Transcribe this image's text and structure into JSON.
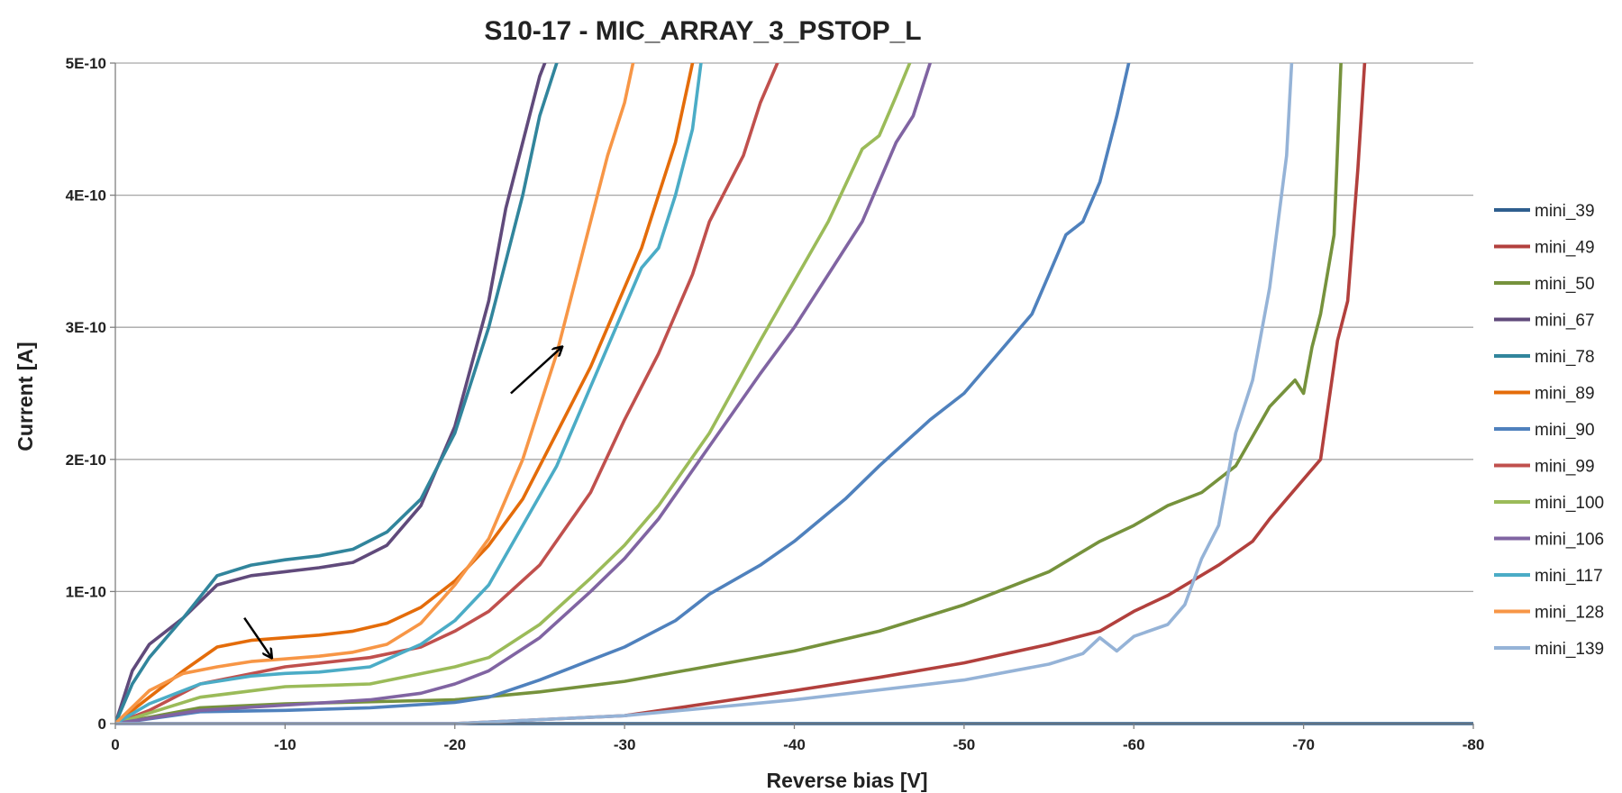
{
  "chart_data": {
    "type": "line",
    "title": "S10-17 - MIC_ARRAY_3_PSTOP_L",
    "xlabel": "Reverse bias [V]",
    "ylabel": "Current [A]",
    "xlim": [
      0,
      -80
    ],
    "ylim": [
      0,
      5e-10
    ],
    "grid": true,
    "legend_position": "right",
    "x_ticks": [
      {
        "value": 0,
        "label": "0"
      },
      {
        "value": -10,
        "label": "-10"
      },
      {
        "value": -20,
        "label": "-20"
      },
      {
        "value": -30,
        "label": "-30"
      },
      {
        "value": -40,
        "label": "-40"
      },
      {
        "value": -50,
        "label": "-50"
      },
      {
        "value": -60,
        "label": "-60"
      },
      {
        "value": -70,
        "label": "-70"
      },
      {
        "value": -80,
        "label": "-80"
      }
    ],
    "y_ticks": [
      {
        "value": 0,
        "label": "0"
      },
      {
        "value": 1e-10,
        "label": "1E-10"
      },
      {
        "value": 2e-10,
        "label": "2E-10"
      },
      {
        "value": 3e-10,
        "label": "3E-10"
      },
      {
        "value": 4e-10,
        "label": "4E-10"
      },
      {
        "value": 5e-10,
        "label": "5E-10"
      }
    ],
    "series": [
      {
        "name": "mini_39",
        "color": "#2e5e8e",
        "x": [
          0,
          -10,
          -20,
          -30,
          -40,
          -50,
          -60,
          -70,
          -80
        ],
        "y": [
          0,
          0,
          0,
          0,
          0,
          0,
          0,
          0,
          0
        ]
      },
      {
        "name": "mini_49",
        "color": "#b2403d",
        "x": [
          0,
          -10,
          -20,
          -30,
          -40,
          -45,
          -50,
          -55,
          -58,
          -60,
          -62,
          -65,
          -67,
          -68,
          -69,
          -70,
          -71,
          -72,
          -72.6,
          -73.2,
          -73.6
        ],
        "y": [
          0,
          0,
          0,
          6e-12,
          2.5e-11,
          3.5e-11,
          4.6e-11,
          6e-11,
          7e-11,
          8.5e-11,
          9.7e-11,
          1.2e-10,
          1.38e-10,
          1.55e-10,
          1.7e-10,
          1.85e-10,
          2e-10,
          2.9e-10,
          3.2e-10,
          4.2e-10,
          5e-10
        ]
      },
      {
        "name": "mini_50",
        "color": "#76923c",
        "x": [
          0,
          -5,
          -10,
          -20,
          -25,
          -30,
          -40,
          -45,
          -50,
          -55,
          -58,
          -60,
          -62,
          -64,
          -66,
          -68,
          -69.5,
          -70,
          -70.5,
          -71,
          -71.8,
          -72.2
        ],
        "y": [
          0,
          1.2e-11,
          1.5e-11,
          1.8e-11,
          2.4e-11,
          3.2e-11,
          5.5e-11,
          7e-11,
          9e-11,
          1.15e-10,
          1.38e-10,
          1.5e-10,
          1.65e-10,
          1.75e-10,
          1.95e-10,
          2.4e-10,
          2.6e-10,
          2.5e-10,
          2.85e-10,
          3.1e-10,
          3.7e-10,
          5e-10
        ]
      },
      {
        "name": "mini_67",
        "color": "#604a7b",
        "x": [
          0,
          -1,
          -2,
          -4,
          -6,
          -8,
          -10,
          -12,
          -14,
          -16,
          -18,
          -20,
          -22,
          -23,
          -24,
          -25,
          -25.3
        ],
        "y": [
          0,
          4e-11,
          6e-11,
          8e-11,
          1.05e-10,
          1.12e-10,
          1.15e-10,
          1.18e-10,
          1.22e-10,
          1.35e-10,
          1.65e-10,
          2.25e-10,
          3.2e-10,
          3.9e-10,
          4.4e-10,
          4.9e-10,
          5e-10
        ]
      },
      {
        "name": "mini_78",
        "color": "#31859c",
        "x": [
          0,
          -1,
          -2,
          -4,
          -6,
          -8,
          -10,
          -12,
          -14,
          -16,
          -18,
          -20,
          -22,
          -23,
          -24,
          -25,
          -26
        ],
        "y": [
          0,
          3e-11,
          5e-11,
          8e-11,
          1.12e-10,
          1.2e-10,
          1.24e-10,
          1.27e-10,
          1.32e-10,
          1.45e-10,
          1.7e-10,
          2.2e-10,
          3e-10,
          3.5e-10,
          4e-10,
          4.6e-10,
          5e-10
        ]
      },
      {
        "name": "mini_89",
        "color": "#e46c0a",
        "x": [
          0,
          -2,
          -4,
          -6,
          -8,
          -10,
          -12,
          -14,
          -16,
          -18,
          -20,
          -22,
          -24,
          -26,
          -28,
          -30,
          -31,
          -32,
          -33,
          -34
        ],
        "y": [
          0,
          2e-11,
          4e-11,
          5.8e-11,
          6.3e-11,
          6.5e-11,
          6.7e-11,
          7e-11,
          7.6e-11,
          8.8e-11,
          1.08e-10,
          1.35e-10,
          1.7e-10,
          2.2e-10,
          2.7e-10,
          3.3e-10,
          3.6e-10,
          4e-10,
          4.4e-10,
          5e-10
        ]
      },
      {
        "name": "mini_90",
        "color": "#4f81bd",
        "x": [
          0,
          -5,
          -10,
          -15,
          -20,
          -22,
          -25,
          -28,
          -30,
          -33,
          -35,
          -38,
          -40,
          -43,
          -45,
          -48,
          -50,
          -52,
          -54,
          -55,
          -56,
          -57,
          -58,
          -59,
          -59.7
        ],
        "y": [
          0,
          9e-12,
          1e-11,
          1.2e-11,
          1.6e-11,
          2e-11,
          3.3e-11,
          4.8e-11,
          5.8e-11,
          7.8e-11,
          9.8e-11,
          1.2e-10,
          1.38e-10,
          1.7e-10,
          1.95e-10,
          2.3e-10,
          2.5e-10,
          2.8e-10,
          3.1e-10,
          3.4e-10,
          3.7e-10,
          3.8e-10,
          4.1e-10,
          4.6e-10,
          5e-10
        ]
      },
      {
        "name": "mini_99",
        "color": "#c0504d",
        "x": [
          0,
          -2,
          -5,
          -10,
          -15,
          -18,
          -20,
          -22,
          -25,
          -28,
          -30,
          -32,
          -34,
          -35,
          -36,
          -37,
          -38,
          -39
        ],
        "y": [
          0,
          1e-11,
          3e-11,
          4.3e-11,
          5e-11,
          5.8e-11,
          7e-11,
          8.5e-11,
          1.2e-10,
          1.75e-10,
          2.3e-10,
          2.8e-10,
          3.4e-10,
          3.8e-10,
          4.05e-10,
          4.3e-10,
          4.7e-10,
          5e-10
        ]
      },
      {
        "name": "mini_100",
        "color": "#9bbb59",
        "x": [
          0,
          -5,
          -10,
          -15,
          -20,
          -22,
          -25,
          -28,
          -30,
          -32,
          -35,
          -38,
          -40,
          -42,
          -44,
          -45,
          -46,
          -46.8
        ],
        "y": [
          0,
          2e-11,
          2.8e-11,
          3e-11,
          4.3e-11,
          5e-11,
          7.5e-11,
          1.1e-10,
          1.35e-10,
          1.65e-10,
          2.2e-10,
          2.9e-10,
          3.35e-10,
          3.8e-10,
          4.35e-10,
          4.45e-10,
          4.75e-10,
          5e-10
        ]
      },
      {
        "name": "mini_106",
        "color": "#8064a2",
        "x": [
          0,
          -5,
          -10,
          -15,
          -18,
          -20,
          -22,
          -25,
          -28,
          -30,
          -32,
          -35,
          -38,
          -40,
          -42,
          -44,
          -46,
          -47,
          -48
        ],
        "y": [
          0,
          1e-11,
          1.4e-11,
          1.8e-11,
          2.3e-11,
          3e-11,
          4e-11,
          6.5e-11,
          1e-10,
          1.25e-10,
          1.55e-10,
          2.1e-10,
          2.65e-10,
          3e-10,
          3.4e-10,
          3.8e-10,
          4.4e-10,
          4.6e-10,
          5e-10
        ]
      },
      {
        "name": "mini_117",
        "color": "#4bacc6",
        "x": [
          0,
          -2,
          -5,
          -8,
          -10,
          -12,
          -15,
          -18,
          -20,
          -22,
          -24,
          -26,
          -28,
          -30,
          -31,
          -32,
          -33,
          -34,
          -34.5
        ],
        "y": [
          0,
          1.5e-11,
          3e-11,
          3.6e-11,
          3.8e-11,
          3.9e-11,
          4.3e-11,
          6e-11,
          7.8e-11,
          1.05e-10,
          1.5e-10,
          1.95e-10,
          2.55e-10,
          3.15e-10,
          3.45e-10,
          3.6e-10,
          4e-10,
          4.5e-10,
          5e-10
        ]
      },
      {
        "name": "mini_128",
        "color": "#f79646",
        "x": [
          0,
          -2,
          -4,
          -6,
          -8,
          -10,
          -12,
          -14,
          -16,
          -18,
          -20,
          -22,
          -23,
          -24,
          -25,
          -26,
          -27,
          -28,
          -29,
          -30,
          -30.5
        ],
        "y": [
          0,
          2.5e-11,
          3.8e-11,
          4.3e-11,
          4.7e-11,
          4.9e-11,
          5.1e-11,
          5.4e-11,
          6e-11,
          7.6e-11,
          1.05e-10,
          1.4e-10,
          1.7e-10,
          2e-10,
          2.4e-10,
          2.8e-10,
          3.3e-10,
          3.8e-10,
          4.3e-10,
          4.7e-10,
          5e-10
        ]
      },
      {
        "name": "mini_139",
        "color": "#95b3d7",
        "x": [
          0,
          -10,
          -20,
          -30,
          -40,
          -50,
          -55,
          -57,
          -58,
          -59,
          -60,
          -62,
          -63,
          -64,
          -65,
          -66,
          -67,
          -68,
          -68.5,
          -69,
          -69.3
        ],
        "y": [
          0,
          0,
          0,
          6e-12,
          1.8e-11,
          3.3e-11,
          4.5e-11,
          5.3e-11,
          6.5e-11,
          5.5e-11,
          6.6e-11,
          7.5e-11,
          9e-11,
          1.25e-10,
          1.5e-10,
          2.2e-10,
          2.6e-10,
          3.3e-10,
          3.8e-10,
          4.3e-10,
          5e-10
        ]
      }
    ],
    "annotations": [
      {
        "type": "arrow",
        "from": [
          -23.3,
          2.5e-10
        ],
        "to": [
          -26.3,
          2.85e-10
        ]
      },
      {
        "type": "arrow",
        "from": [
          -7.6,
          8e-11
        ],
        "to": [
          -9.2,
          5e-11
        ]
      }
    ]
  }
}
